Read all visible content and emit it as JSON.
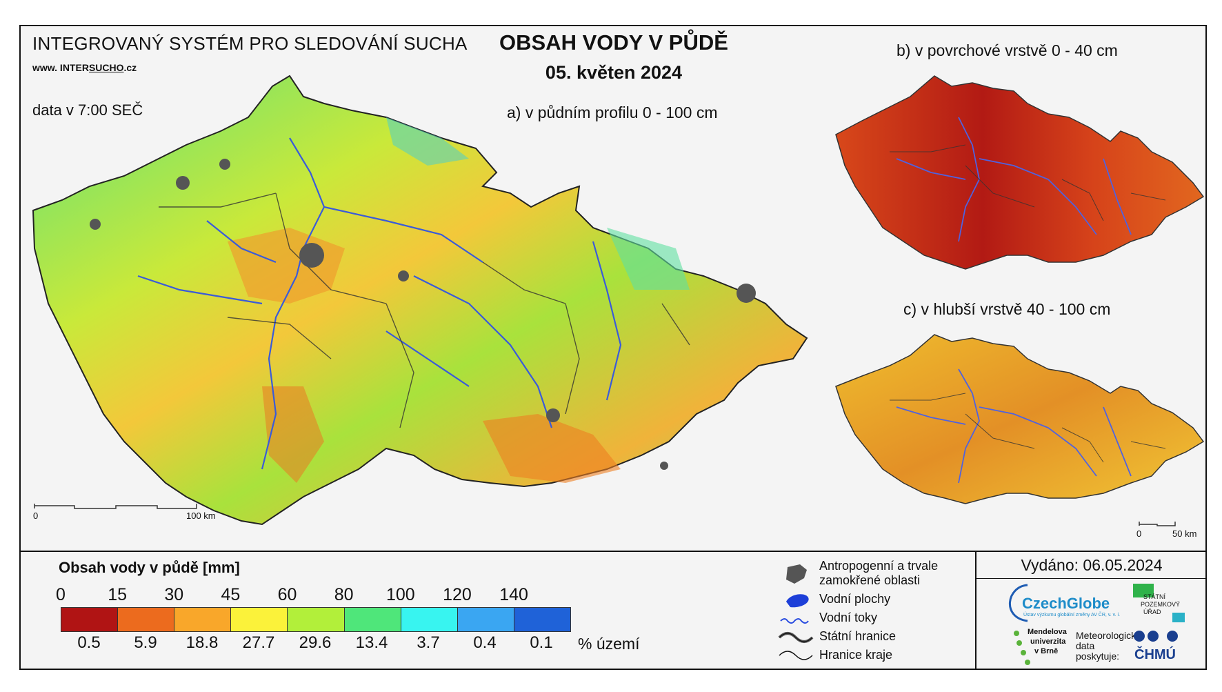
{
  "header": {
    "system": "INTEGROVANÝ SYSTÉM PRO SLEDOVÁNÍ SUCHA",
    "web_prefix": "www. INTER",
    "web_brand": "SUCHO",
    "web_suffix": ".cz",
    "data_time": "data v 7:00 SEČ",
    "title": "OBSAH VODY V PŮDĚ",
    "date": "05. květen 2024"
  },
  "maps": {
    "a_label": "a) v půdním profilu 0 - 100 cm",
    "b_label": "b) v povrchové vrstvě 0 - 40 cm",
    "c_label": "c) v hlubší vrstvě 40 - 100 cm",
    "scale_a_start": "0",
    "scale_a_end": "100 km",
    "scale_c_start": "0",
    "scale_c_end": "50 km",
    "fill_colors": {
      "a": "#9fdc3c",
      "b": "#d33a12",
      "c": "#e0a72a",
      "urban": "#555555",
      "river": "#3a5bd9",
      "border": "#222222"
    }
  },
  "legend": {
    "title": "Obsah vody v půdě  [mm]",
    "ticks": [
      "0",
      "15",
      "30",
      "45",
      "60",
      "80",
      "100",
      "120",
      "140"
    ],
    "colors": [
      "#b01414",
      "#ec6b1e",
      "#f9a72a",
      "#fbf23a",
      "#b2ef3a",
      "#4fe67a",
      "#38f4f0",
      "#3aa6f2",
      "#1f62d8"
    ],
    "percents": [
      "0.5",
      "5.9",
      "18.8",
      "27.7",
      "29.6",
      "13.4",
      "3.7",
      "0.4",
      "0.1"
    ],
    "percent_label": "% území"
  },
  "symbols": {
    "anthropogenic_line1": "Antropogenní a trvale",
    "anthropogenic_line2": "zamokřené oblasti",
    "water_bodies": "Vodní plochy",
    "streams": "Vodní toky",
    "state_border": "Státní hranice",
    "region_border": "Hranice kraje"
  },
  "footer": {
    "issued": "Vydáno: 06.05.2024",
    "czechglobe": "CzechGlobe",
    "czechglobe_sub": "Ústav výzkumu globální změny AV ČR, v. v. i.",
    "spu_line1": "STÁTNÍ",
    "spu_line2": "POZEMKOVÝ",
    "spu_line3": "ÚŘAD",
    "mendel_line1": "Mendelova",
    "mendel_line2": "univerzita",
    "mendel_line3": "v Brně",
    "meteo_line1": "Meteorologická",
    "meteo_line2": "data",
    "meteo_line3": "poskytuje:",
    "chmu": "ČHMÚ"
  }
}
